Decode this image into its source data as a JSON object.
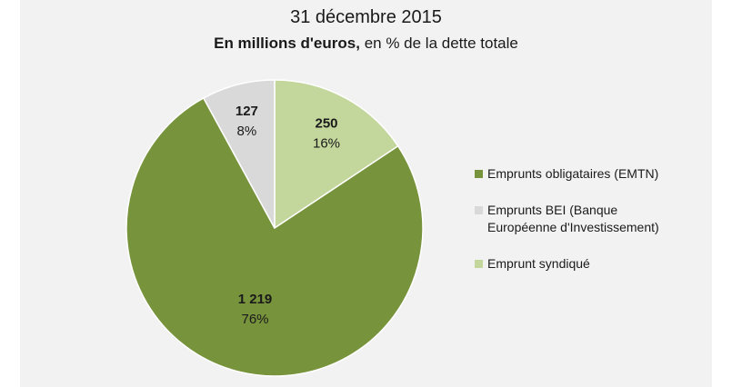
{
  "title": "31 décembre 2015",
  "subtitle_bold": "En millions d'euros,",
  "subtitle_rest": " en % de la dette totale",
  "chart_data": {
    "type": "pie",
    "title": "31 décembre 2015",
    "subtitle": "En millions d'euros, en % de la dette totale",
    "slices": [
      {
        "name": "Emprunts obligataires (EMTN)",
        "value_label": "1 219",
        "value": 1219,
        "percent_label": "76%",
        "percent": 76,
        "color": "#77933c"
      },
      {
        "name": "Emprunts BEI (Banque Européenne d'Investissement)",
        "value_label": "127",
        "value": 127,
        "percent_label": "8%",
        "percent": 8,
        "color": "#d9d9d9"
      },
      {
        "name": "Emprunt syndiqué",
        "value_label": "250",
        "value": 250,
        "percent_label": "16%",
        "percent": 16,
        "color": "#c3d69b"
      }
    ],
    "legend_position": "right"
  },
  "legend": [
    {
      "line1": "Emprunts obligataires (EMTN)",
      "line2": "",
      "color": "#77933c"
    },
    {
      "line1": "Emprunts BEI (Banque",
      "line2": "Européenne d'Investissement)",
      "color": "#d9d9d9"
    },
    {
      "line1": "Emprunt syndiqué",
      "line2": "",
      "color": "#c3d69b"
    }
  ]
}
